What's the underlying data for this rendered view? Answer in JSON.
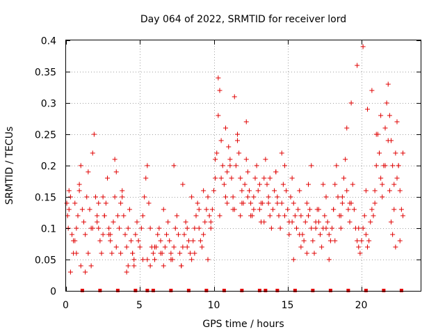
{
  "chart_data": {
    "type": "scatter",
    "title": "Day 064 of 2022, SRMTID for receiver lord",
    "xlabel": "GPS time / hours",
    "ylabel": "SRMTID / TECUs",
    "xlim": [
      0,
      24
    ],
    "ylim": [
      0,
      0.4
    ],
    "x_ticks": [
      0,
      5,
      10,
      15,
      20
    ],
    "x_tick_labels": [
      "0",
      "5",
      "10",
      "15",
      "20"
    ],
    "y_ticks": [
      0,
      0.05,
      0.1,
      0.15,
      0.2,
      0.25,
      0.3,
      0.35,
      0.4
    ],
    "y_tick_labels": [
      "0",
      "0.05",
      "0.1",
      "0.15",
      "0.2",
      "0.25",
      "0.3",
      "0.35",
      "0.4"
    ],
    "grid": true,
    "marker": "plus",
    "color": "#e00000",
    "series": [
      {
        "name": "SRMTID",
        "x": [
          0.05,
          0.1,
          0.15,
          0.2,
          0.3,
          0.4,
          0.5,
          0.6,
          0.7,
          0.8,
          0.9,
          1.0,
          1.1,
          1.2,
          1.3,
          1.4,
          1.5,
          1.6,
          1.7,
          1.8,
          1.9,
          2.0,
          2.1,
          2.2,
          2.3,
          2.4,
          2.5,
          2.6,
          2.7,
          2.8,
          2.9,
          3.0,
          3.1,
          3.2,
          3.3,
          3.4,
          3.5,
          3.6,
          3.7,
          3.8,
          3.9,
          4.0,
          4.1,
          4.2,
          4.3,
          4.4,
          4.5,
          4.6,
          4.7,
          4.8,
          4.9,
          5.0,
          5.1,
          5.2,
          5.3,
          5.4,
          5.5,
          5.6,
          5.7,
          5.8,
          5.9,
          6.0,
          6.1,
          6.2,
          6.3,
          6.4,
          6.5,
          6.6,
          6.7,
          6.8,
          6.9,
          7.0,
          7.1,
          7.2,
          7.3,
          7.4,
          7.5,
          7.6,
          7.7,
          7.8,
          7.9,
          8.0,
          8.1,
          8.2,
          8.3,
          8.4,
          8.5,
          8.6,
          8.7,
          8.8,
          8.9,
          9.0,
          9.1,
          9.2,
          9.3,
          9.4,
          9.5,
          9.6,
          9.7,
          9.8,
          9.9,
          10.0,
          10.1,
          10.2,
          10.3,
          10.4,
          10.5,
          10.6,
          10.7,
          10.8,
          10.9,
          11.0,
          11.1,
          11.2,
          11.3,
          11.4,
          11.5,
          11.6,
          11.7,
          11.8,
          11.9,
          12.0,
          12.1,
          12.2,
          12.3,
          12.4,
          12.5,
          12.6,
          12.7,
          12.8,
          12.9,
          13.0,
          13.1,
          13.2,
          13.3,
          13.4,
          13.5,
          13.6,
          13.7,
          13.8,
          13.9,
          14.0,
          14.1,
          14.2,
          14.3,
          14.4,
          14.5,
          14.6,
          14.7,
          14.8,
          14.9,
          15.0,
          15.1,
          15.2,
          15.3,
          15.4,
          15.5,
          15.6,
          15.7,
          15.8,
          15.9,
          16.0,
          16.1,
          16.2,
          16.3,
          16.4,
          16.5,
          16.6,
          16.7,
          16.8,
          16.9,
          17.0,
          17.1,
          17.2,
          17.3,
          17.4,
          17.5,
          17.6,
          17.7,
          17.8,
          17.9,
          18.0,
          18.1,
          18.2,
          18.3,
          18.4,
          18.5,
          18.6,
          18.7,
          18.8,
          18.9,
          19.0,
          19.1,
          19.2,
          19.3,
          19.4,
          19.5,
          19.6,
          19.7,
          19.8,
          19.9,
          20.0,
          20.1,
          20.2,
          20.3,
          20.4,
          20.5,
          20.6,
          20.7,
          20.8,
          20.9,
          21.0,
          21.1,
          21.2,
          21.3,
          21.4,
          21.5,
          21.6,
          21.7,
          21.8,
          21.9,
          22.0,
          22.1,
          22.2,
          22.3,
          22.4,
          22.5,
          22.6,
          22.7,
          22.8,
          0.2,
          0.5,
          0.7,
          1.0,
          1.5,
          1.8,
          2.2,
          2.6,
          3.0,
          3.4,
          3.8,
          4.2,
          4.5,
          5.5,
          5.7,
          6.4,
          7.1,
          7.8,
          8.2,
          8.7,
          9.3,
          9.6,
          10.1,
          10.3,
          10.5,
          10.8,
          11.1,
          11.4,
          11.6,
          11.9,
          12.2,
          12.5,
          12.8,
          13.1,
          13.4,
          13.7,
          14.2,
          14.6,
          15.1,
          15.4,
          15.9,
          16.3,
          16.6,
          17.1,
          17.4,
          17.8,
          18.2,
          18.6,
          19.0,
          19.3,
          19.7,
          20.1,
          20.4,
          20.7,
          21.0,
          21.3,
          21.6,
          21.9,
          22.0,
          22.1,
          22.2,
          22.3,
          22.4,
          22.6,
          22.8,
          0.3,
          0.6,
          0.9,
          1.3,
          1.7,
          2.1,
          2.5,
          2.9,
          3.3,
          3.7,
          4.1,
          4.6,
          5.2,
          6.0,
          6.6,
          7.3,
          7.9,
          8.5,
          9.0,
          9.8,
          10.4,
          10.9,
          11.3,
          11.8,
          12.3,
          12.7,
          13.2,
          13.8,
          14.3,
          14.8,
          15.3,
          15.8,
          16.4,
          16.9,
          17.6,
          18.1,
          18.7,
          19.2,
          19.8,
          20.3,
          20.9,
          21.4,
          21.8,
          22.5
        ],
        "y": [
          0.14,
          0.12,
          0.1,
          0.13,
          0.15,
          0.09,
          0.06,
          0.08,
          0.1,
          0.12,
          0.16,
          0.2,
          0.13,
          0.11,
          0.09,
          0.15,
          0.19,
          0.13,
          0.1,
          0.22,
          0.25,
          0.15,
          0.12,
          0.1,
          0.08,
          0.06,
          0.09,
          0.12,
          0.14,
          0.18,
          0.1,
          0.08,
          0.06,
          0.11,
          0.15,
          0.19,
          0.12,
          0.1,
          0.14,
          0.16,
          0.12,
          0.09,
          0.07,
          0.1,
          0.13,
          0.08,
          0.06,
          0.05,
          0.09,
          0.11,
          0.08,
          0.07,
          0.1,
          0.12,
          0.15,
          0.18,
          0.2,
          0.14,
          0.1,
          0.07,
          0.06,
          0.05,
          0.07,
          0.09,
          0.1,
          0.08,
          0.06,
          0.04,
          0.07,
          0.09,
          0.11,
          0.08,
          0.06,
          0.05,
          0.07,
          0.1,
          0.12,
          0.09,
          0.06,
          0.04,
          0.07,
          0.09,
          0.11,
          0.1,
          0.08,
          0.06,
          0.05,
          0.08,
          0.1,
          0.12,
          0.14,
          0.1,
          0.08,
          0.07,
          0.09,
          0.11,
          0.13,
          0.15,
          0.12,
          0.1,
          0.13,
          0.16,
          0.18,
          0.22,
          0.28,
          0.32,
          0.24,
          0.2,
          0.17,
          0.15,
          0.19,
          0.23,
          0.21,
          0.18,
          0.15,
          0.13,
          0.2,
          0.25,
          0.22,
          0.18,
          0.16,
          0.14,
          0.17,
          0.21,
          0.19,
          0.16,
          0.14,
          0.12,
          0.15,
          0.18,
          0.2,
          0.16,
          0.13,
          0.11,
          0.14,
          0.18,
          0.21,
          0.17,
          0.14,
          0.12,
          0.1,
          0.13,
          0.16,
          0.19,
          0.15,
          0.12,
          0.1,
          0.14,
          0.17,
          0.2,
          0.16,
          0.13,
          0.11,
          0.15,
          0.18,
          0.14,
          0.12,
          0.1,
          0.13,
          0.16,
          0.12,
          0.09,
          0.08,
          0.11,
          0.14,
          0.17,
          0.13,
          0.1,
          0.08,
          0.06,
          0.1,
          0.13,
          0.11,
          0.09,
          0.07,
          0.1,
          0.12,
          0.15,
          0.11,
          0.09,
          0.08,
          0.1,
          0.13,
          0.17,
          0.2,
          0.15,
          0.12,
          0.1,
          0.14,
          0.18,
          0.21,
          0.16,
          0.13,
          0.11,
          0.14,
          0.17,
          0.13,
          0.1,
          0.08,
          0.07,
          0.06,
          0.08,
          0.1,
          0.12,
          0.09,
          0.07,
          0.08,
          0.11,
          0.13,
          0.12,
          0.16,
          0.2,
          0.25,
          0.22,
          0.18,
          0.15,
          0.2,
          0.26,
          0.3,
          0.33,
          0.28,
          0.24,
          0.2,
          0.17,
          0.22,
          0.27,
          0.2,
          0.16,
          0.13,
          0.12,
          0.16,
          0.08,
          0.06,
          0.04,
          0.06,
          0.1,
          0.14,
          0.12,
          0.09,
          0.07,
          0.15,
          0.04,
          0.06,
          0.05,
          0.04,
          0.06,
          0.05,
          0.04,
          0.07,
          0.06,
          0.16,
          0.05,
          0.21,
          0.34,
          0.18,
          0.26,
          0.2,
          0.31,
          0.24,
          0.14,
          0.27,
          0.12,
          0.18,
          0.17,
          0.11,
          0.15,
          0.19,
          0.22,
          0.09,
          0.05,
          0.07,
          0.06,
          0.2,
          0.13,
          0.17,
          0.05,
          0.08,
          0.12,
          0.26,
          0.3,
          0.36,
          0.39,
          0.29,
          0.32,
          0.25,
          0.28,
          0.2,
          0.16,
          0.11,
          0.09,
          0.13,
          0.07,
          0.18,
          0.08,
          0.22,
          0.03,
          0.14,
          0.17,
          0.03,
          0.04,
          0.11,
          0.15,
          0.09,
          0.21,
          0.06,
          0.03,
          0.04,
          0.05,
          0.07,
          0.13,
          0.2,
          0.17,
          0.15,
          0.13,
          0.11,
          0.12,
          0.14,
          0.13,
          0.12,
          0.15,
          0.13,
          0.14,
          0.18,
          0.14,
          0.12,
          0.11,
          0.09,
          0.12,
          0.11,
          0.1,
          0.13,
          0.15,
          0.14,
          0.1,
          0.16,
          0.14,
          0.17,
          0.24,
          0.2
        ]
      }
    ],
    "zero_line_x": [
      1.1,
      2.3,
      3.5,
      4.7,
      5.5,
      5.9,
      7.1,
      8.3,
      9.5,
      10.7,
      11.9,
      13.1,
      13.5,
      14.3,
      15.5,
      16.7,
      17.9,
      19.1,
      20.3,
      21.5,
      22.7
    ]
  }
}
